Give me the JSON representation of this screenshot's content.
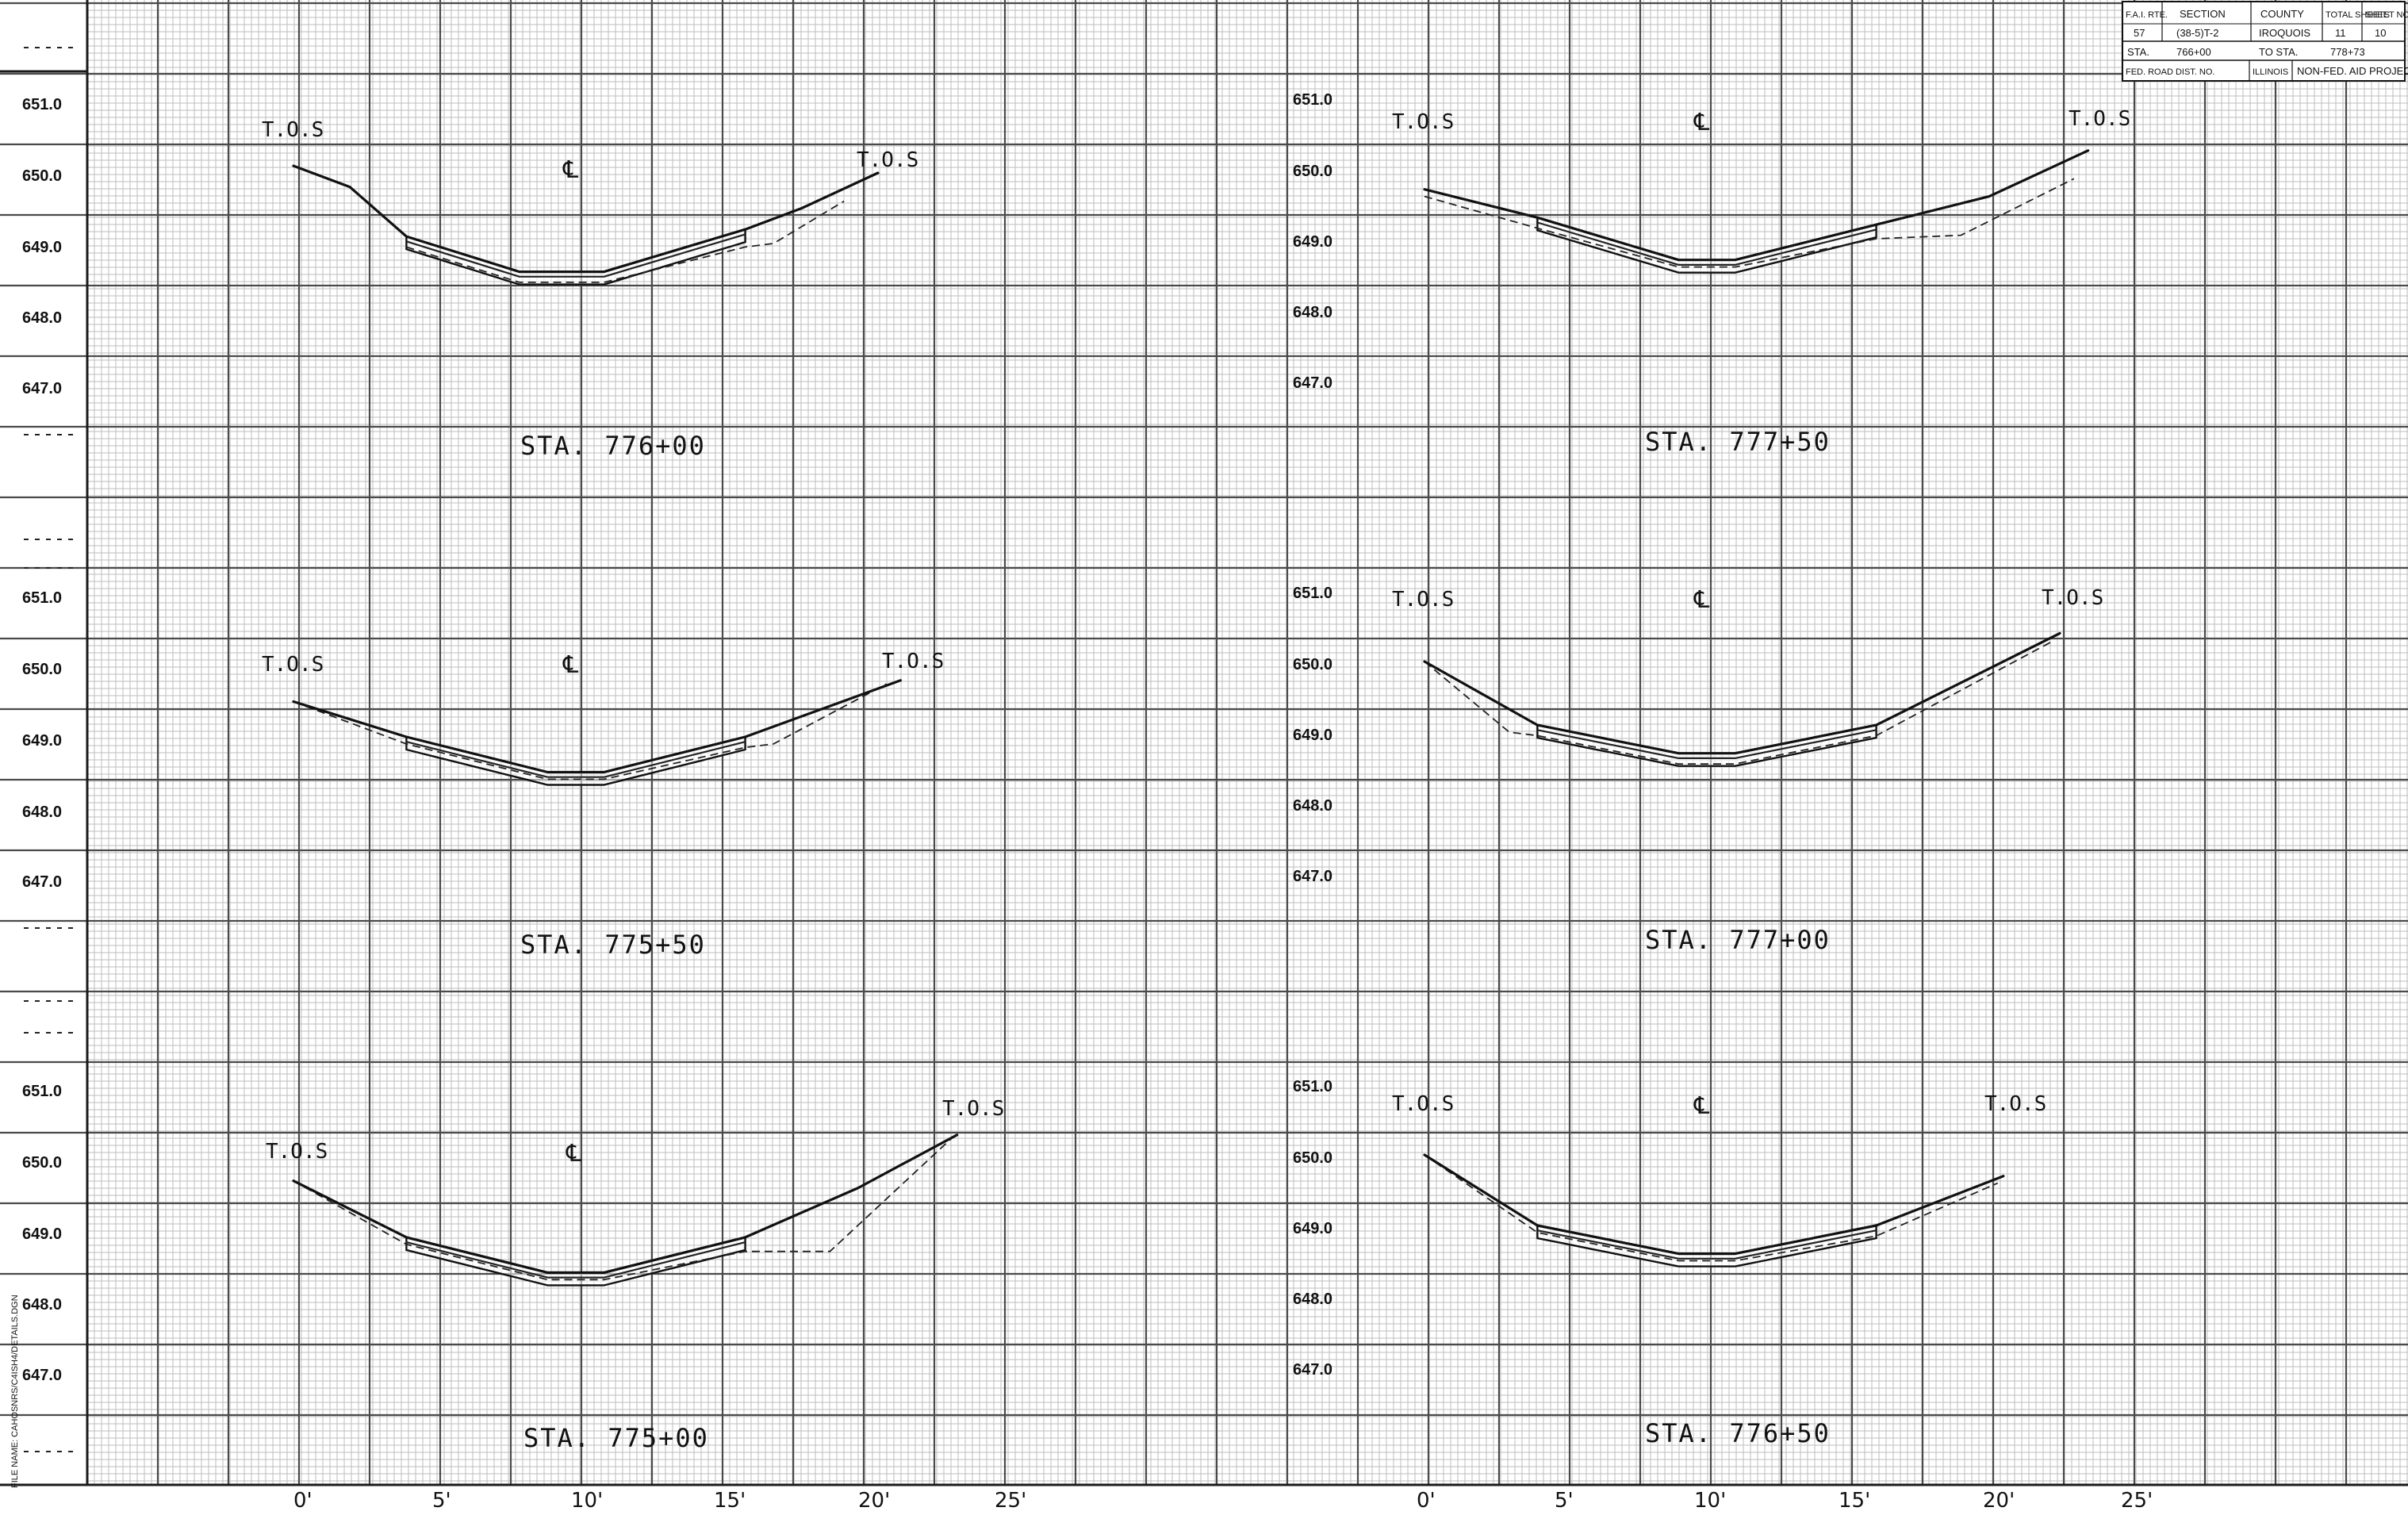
{
  "title_block": {
    "fai_rte_label": "F.A.I. RTE.",
    "section_label": "SECTION",
    "county_label": "COUNTY",
    "total_sheets_label": "TOTAL SHEETS",
    "sheet_no_label": "SHEET NO.",
    "route": "57",
    "section": "(38-5)T-2",
    "county": "IROQUOIS",
    "total_sheets": "11",
    "sheet_no": "10",
    "sta_label": "STA.",
    "sta_from": "766+00",
    "to_sta_label": "TO STA.",
    "sta_to": "778+73",
    "fed_road_label": "FED. ROAD DIST. NO.",
    "state": "ILLINOIS",
    "project_type": "NON-FED. AID PROJECT"
  },
  "file_name": "FILE NAME: CAHOSNRS/C4ISH4/DETAILS.DGN",
  "elevation_labels": [
    "651.0",
    "650.0",
    "649.0",
    "648.0",
    "647.0"
  ],
  "offset_labels": [
    "0'",
    "5'",
    "10'",
    "15'",
    "20'",
    "25'"
  ],
  "markers": {
    "top_of_slope": "T.O.S",
    "centerline": "℄"
  },
  "chart_data": {
    "type": "cross-section",
    "units": {
      "offset": "ft",
      "elevation": "ft"
    },
    "sections": [
      {
        "station": "STA. 776+00",
        "ground": [
          [
            0,
            650.1
          ],
          [
            2,
            649.8
          ],
          [
            4,
            649.1
          ],
          [
            8,
            648.6
          ],
          [
            11,
            648.6
          ],
          [
            16,
            649.2
          ],
          [
            18,
            649.5
          ],
          [
            20.7,
            650.0
          ]
        ],
        "existing": [
          [
            4,
            648.95
          ],
          [
            8,
            648.45
          ],
          [
            11,
            648.45
          ],
          [
            16,
            648.95
          ],
          [
            17,
            649.0
          ],
          [
            19.5,
            649.6
          ]
        ],
        "lining": [
          4,
          16
        ]
      },
      {
        "station": "STA. 777+50",
        "ground": [
          [
            0,
            649.7
          ],
          [
            4,
            649.3
          ],
          [
            9,
            648.7
          ],
          [
            11,
            648.7
          ],
          [
            16,
            649.2
          ],
          [
            20,
            649.6
          ],
          [
            23.5,
            650.25
          ]
        ],
        "existing": [
          [
            0,
            649.6
          ],
          [
            4,
            649.15
          ],
          [
            9,
            648.6
          ],
          [
            11,
            648.6
          ],
          [
            16,
            649.0
          ],
          [
            19,
            649.05
          ],
          [
            23,
            649.85
          ]
        ],
        "lining": [
          4,
          16
        ]
      },
      {
        "station": "STA. 775+50",
        "ground": [
          [
            0,
            649.5
          ],
          [
            4,
            649.0
          ],
          [
            9,
            648.5
          ],
          [
            11,
            648.5
          ],
          [
            16,
            649.0
          ],
          [
            21.5,
            649.8
          ]
        ],
        "existing": [
          [
            0,
            649.5
          ],
          [
            4,
            648.9
          ],
          [
            9,
            648.4
          ],
          [
            11,
            648.4
          ],
          [
            16,
            648.85
          ],
          [
            17,
            648.9
          ],
          [
            21,
            649.75
          ]
        ],
        "lining": [
          4,
          16
        ]
      },
      {
        "station": "STA. 777+00",
        "ground": [
          [
            0,
            650.0
          ],
          [
            4,
            649.1
          ],
          [
            9,
            648.7
          ],
          [
            11,
            648.7
          ],
          [
            16,
            649.1
          ],
          [
            22.5,
            650.4
          ]
        ],
        "existing": [
          [
            0,
            650.0
          ],
          [
            3,
            649.0
          ],
          [
            4,
            648.95
          ],
          [
            9,
            648.55
          ],
          [
            11,
            648.55
          ],
          [
            16,
            648.95
          ],
          [
            22.3,
            650.3
          ]
        ],
        "lining": [
          4,
          16
        ]
      },
      {
        "station": "STA. 775+00",
        "ground": [
          [
            0,
            649.7
          ],
          [
            4,
            648.9
          ],
          [
            9,
            648.4
          ],
          [
            11,
            648.4
          ],
          [
            16,
            648.9
          ],
          [
            20,
            649.6
          ],
          [
            23.5,
            650.35
          ]
        ],
        "existing": [
          [
            0,
            649.7
          ],
          [
            4,
            648.8
          ],
          [
            9,
            648.3
          ],
          [
            11,
            648.3
          ],
          [
            16,
            648.7
          ],
          [
            19,
            648.7
          ],
          [
            23.3,
            650.3
          ]
        ],
        "lining": [
          4,
          16
        ]
      },
      {
        "station": "STA. 776+50",
        "ground": [
          [
            0,
            650.0
          ],
          [
            4,
            649.0
          ],
          [
            9,
            648.6
          ],
          [
            11,
            648.6
          ],
          [
            16,
            649.0
          ],
          [
            20.5,
            649.7
          ]
        ],
        "existing": [
          [
            0,
            650.0
          ],
          [
            4,
            648.9
          ],
          [
            9,
            648.5
          ],
          [
            11,
            648.5
          ],
          [
            16,
            648.85
          ],
          [
            20.3,
            649.6
          ]
        ],
        "lining": [
          4,
          16
        ]
      }
    ]
  }
}
